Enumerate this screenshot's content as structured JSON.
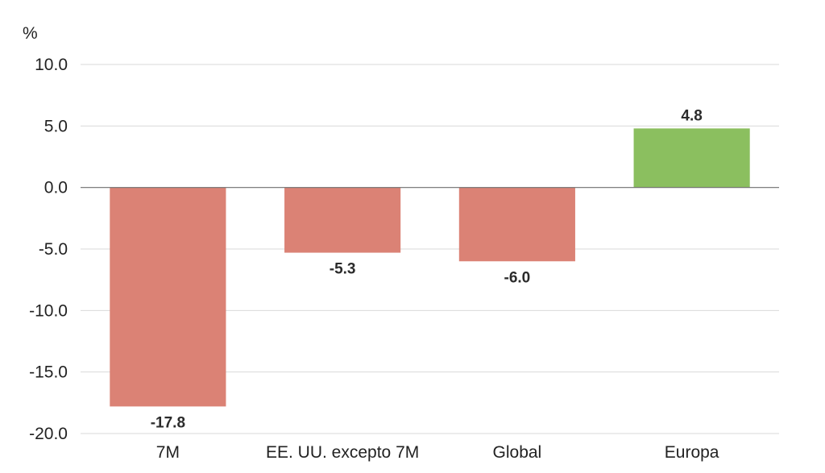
{
  "chart_data": {
    "type": "bar",
    "title": "",
    "xlabel": "",
    "ylabel": "%",
    "categories": [
      "7M",
      "EE. UU. excepto 7M",
      "Global",
      "Europa"
    ],
    "values": [
      -17.8,
      -5.3,
      -6.0,
      4.8
    ],
    "data_labels": [
      "-17.8",
      "-5.3",
      "-6.0",
      "4.8"
    ],
    "ylim": [
      -20.0,
      10.0
    ],
    "yticks": [
      10.0,
      5.0,
      0.0,
      -5.0,
      -10.0,
      -15.0,
      -20.0
    ],
    "ytick_labels": [
      "10.0",
      "5.0",
      "0.0",
      "-5.0",
      "-10.0",
      "-15.0",
      "-20.0"
    ],
    "grid": true,
    "legend": "none",
    "colors": {
      "negative": "#db8275",
      "positive": "#8bbf5f"
    }
  }
}
